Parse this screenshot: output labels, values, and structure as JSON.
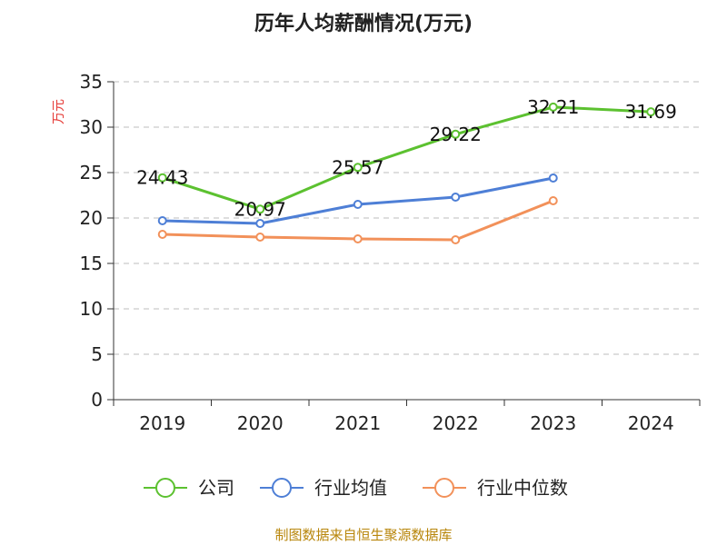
{
  "chart_data": {
    "type": "line",
    "title": "历年人均薪酬情况(万元)",
    "ylabel": "万元",
    "categories": [
      "2019",
      "2020",
      "2021",
      "2022",
      "2023",
      "2024"
    ],
    "ylim": [
      0,
      35
    ],
    "yticks": [
      0,
      5,
      10,
      15,
      20,
      25,
      30,
      35
    ],
    "grid": true,
    "legend_position": "bottom",
    "series": [
      {
        "name": "公司",
        "color": "#5cc130",
        "values": [
          24.43,
          20.97,
          25.57,
          29.22,
          32.21,
          31.69
        ],
        "labels": [
          "24.43",
          "20.97",
          "25.57",
          "29.22",
          "32.21",
          "31.69"
        ]
      },
      {
        "name": "行业均值",
        "color": "#4e7fd6",
        "values": [
          19.7,
          19.4,
          21.5,
          22.3,
          24.4,
          null
        ]
      },
      {
        "name": "行业中位数",
        "color": "#f2915a",
        "values": [
          18.2,
          17.9,
          17.7,
          17.6,
          21.9,
          null
        ]
      }
    ]
  },
  "source_text": "制图数据来自恒生聚源数据库"
}
